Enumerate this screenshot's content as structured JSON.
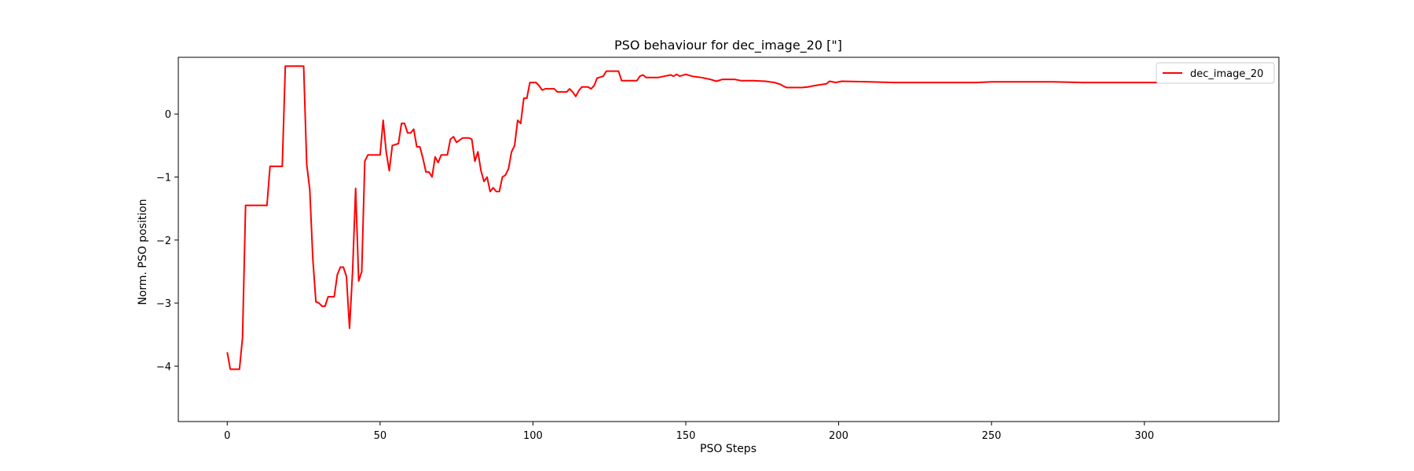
{
  "chart_data": {
    "type": "line",
    "title": "PSO behaviour for dec_image_20 [\"]",
    "xlabel": "PSO Steps",
    "ylabel": "Norm. PSO position",
    "xlim": [
      -16,
      344
    ],
    "ylim": [
      -4.88,
      0.9
    ],
    "xticks": [
      0,
      50,
      100,
      150,
      200,
      250,
      300
    ],
    "yticks": [
      0,
      -1,
      -2,
      -3,
      -4
    ],
    "ytick_labels": [
      "0",
      "−1",
      "−2",
      "−3",
      "−4"
    ],
    "grid": false,
    "legend": "top-right",
    "series": [
      {
        "name": "dec_image_20",
        "color": "#ff0000",
        "points": [
          [
            0,
            -3.78
          ],
          [
            1,
            -4.05
          ],
          [
            4,
            -4.05
          ],
          [
            5,
            -3.55
          ],
          [
            6,
            -1.45
          ],
          [
            13,
            -1.45
          ],
          [
            14,
            -0.83
          ],
          [
            18,
            -0.83
          ],
          [
            19,
            0.76
          ],
          [
            25,
            0.76
          ],
          [
            26,
            -0.8
          ],
          [
            27,
            -1.2
          ],
          [
            28,
            -2.3
          ],
          [
            29,
            -2.98
          ],
          [
            30,
            -3.0
          ],
          [
            31,
            -3.05
          ],
          [
            32,
            -3.05
          ],
          [
            33,
            -2.9
          ],
          [
            35,
            -2.9
          ],
          [
            36,
            -2.55
          ],
          [
            37,
            -2.43
          ],
          [
            38,
            -2.43
          ],
          [
            39,
            -2.58
          ],
          [
            40,
            -3.4
          ],
          [
            41,
            -2.5
          ],
          [
            42,
            -1.18
          ],
          [
            43,
            -2.65
          ],
          [
            44,
            -2.5
          ],
          [
            45,
            -0.75
          ],
          [
            46,
            -0.65
          ],
          [
            50,
            -0.65
          ],
          [
            51,
            -0.1
          ],
          [
            52,
            -0.6
          ],
          [
            53,
            -0.9
          ],
          [
            54,
            -0.5
          ],
          [
            56,
            -0.47
          ],
          [
            57,
            -0.15
          ],
          [
            58,
            -0.15
          ],
          [
            59,
            -0.3
          ],
          [
            60,
            -0.3
          ],
          [
            61,
            -0.24
          ],
          [
            62,
            -0.52
          ],
          [
            63,
            -0.52
          ],
          [
            64,
            -0.7
          ],
          [
            65,
            -0.92
          ],
          [
            66,
            -0.92
          ],
          [
            67,
            -1.0
          ],
          [
            68,
            -0.68
          ],
          [
            69,
            -0.77
          ],
          [
            70,
            -0.65
          ],
          [
            72,
            -0.65
          ],
          [
            73,
            -0.4
          ],
          [
            74,
            -0.36
          ],
          [
            75,
            -0.45
          ],
          [
            77,
            -0.38
          ],
          [
            79,
            -0.38
          ],
          [
            80,
            -0.4
          ],
          [
            81,
            -0.75
          ],
          [
            82,
            -0.6
          ],
          [
            83,
            -0.9
          ],
          [
            84,
            -1.07
          ],
          [
            85,
            -1.0
          ],
          [
            86,
            -1.23
          ],
          [
            87,
            -1.17
          ],
          [
            88,
            -1.23
          ],
          [
            89,
            -1.23
          ],
          [
            90,
            -1.0
          ],
          [
            91,
            -0.97
          ],
          [
            92,
            -0.87
          ],
          [
            93,
            -0.6
          ],
          [
            94,
            -0.5
          ],
          [
            95,
            -0.1
          ],
          [
            96,
            -0.15
          ],
          [
            97,
            0.25
          ],
          [
            98,
            0.25
          ],
          [
            99,
            0.5
          ],
          [
            101,
            0.5
          ],
          [
            102,
            0.45
          ],
          [
            103,
            0.38
          ],
          [
            104,
            0.4
          ],
          [
            107,
            0.4
          ],
          [
            108,
            0.35
          ],
          [
            111,
            0.35
          ],
          [
            112,
            0.4
          ],
          [
            113,
            0.35
          ],
          [
            114,
            0.28
          ],
          [
            115,
            0.37
          ],
          [
            116,
            0.43
          ],
          [
            118,
            0.43
          ],
          [
            119,
            0.4
          ],
          [
            120,
            0.45
          ],
          [
            121,
            0.57
          ],
          [
            123,
            0.6
          ],
          [
            124,
            0.68
          ],
          [
            128,
            0.68
          ],
          [
            129,
            0.53
          ],
          [
            134,
            0.53
          ],
          [
            135,
            0.6
          ],
          [
            136,
            0.62
          ],
          [
            137,
            0.58
          ],
          [
            141,
            0.58
          ],
          [
            143,
            0.6
          ],
          [
            145,
            0.62
          ],
          [
            146,
            0.6
          ],
          [
            147,
            0.63
          ],
          [
            148,
            0.6
          ],
          [
            150,
            0.63
          ],
          [
            152,
            0.6
          ],
          [
            155,
            0.58
          ],
          [
            158,
            0.55
          ],
          [
            160,
            0.52
          ],
          [
            162,
            0.55
          ],
          [
            166,
            0.55
          ],
          [
            168,
            0.53
          ],
          [
            172,
            0.53
          ],
          [
            176,
            0.52
          ],
          [
            179,
            0.5
          ],
          [
            181,
            0.47
          ],
          [
            182,
            0.44
          ],
          [
            183,
            0.42
          ],
          [
            188,
            0.42
          ],
          [
            190,
            0.43
          ],
          [
            192,
            0.45
          ],
          [
            196,
            0.48
          ],
          [
            197,
            0.52
          ],
          [
            199,
            0.5
          ],
          [
            201,
            0.52
          ],
          [
            210,
            0.51
          ],
          [
            218,
            0.5
          ],
          [
            225,
            0.5
          ],
          [
            232,
            0.5
          ],
          [
            240,
            0.5
          ],
          [
            245,
            0.5
          ],
          [
            250,
            0.51
          ],
          [
            260,
            0.51
          ],
          [
            270,
            0.51
          ],
          [
            280,
            0.5
          ],
          [
            290,
            0.5
          ],
          [
            300,
            0.5
          ],
          [
            310,
            0.5
          ],
          [
            320,
            0.5
          ],
          [
            327,
            0.5
          ]
        ]
      }
    ]
  }
}
